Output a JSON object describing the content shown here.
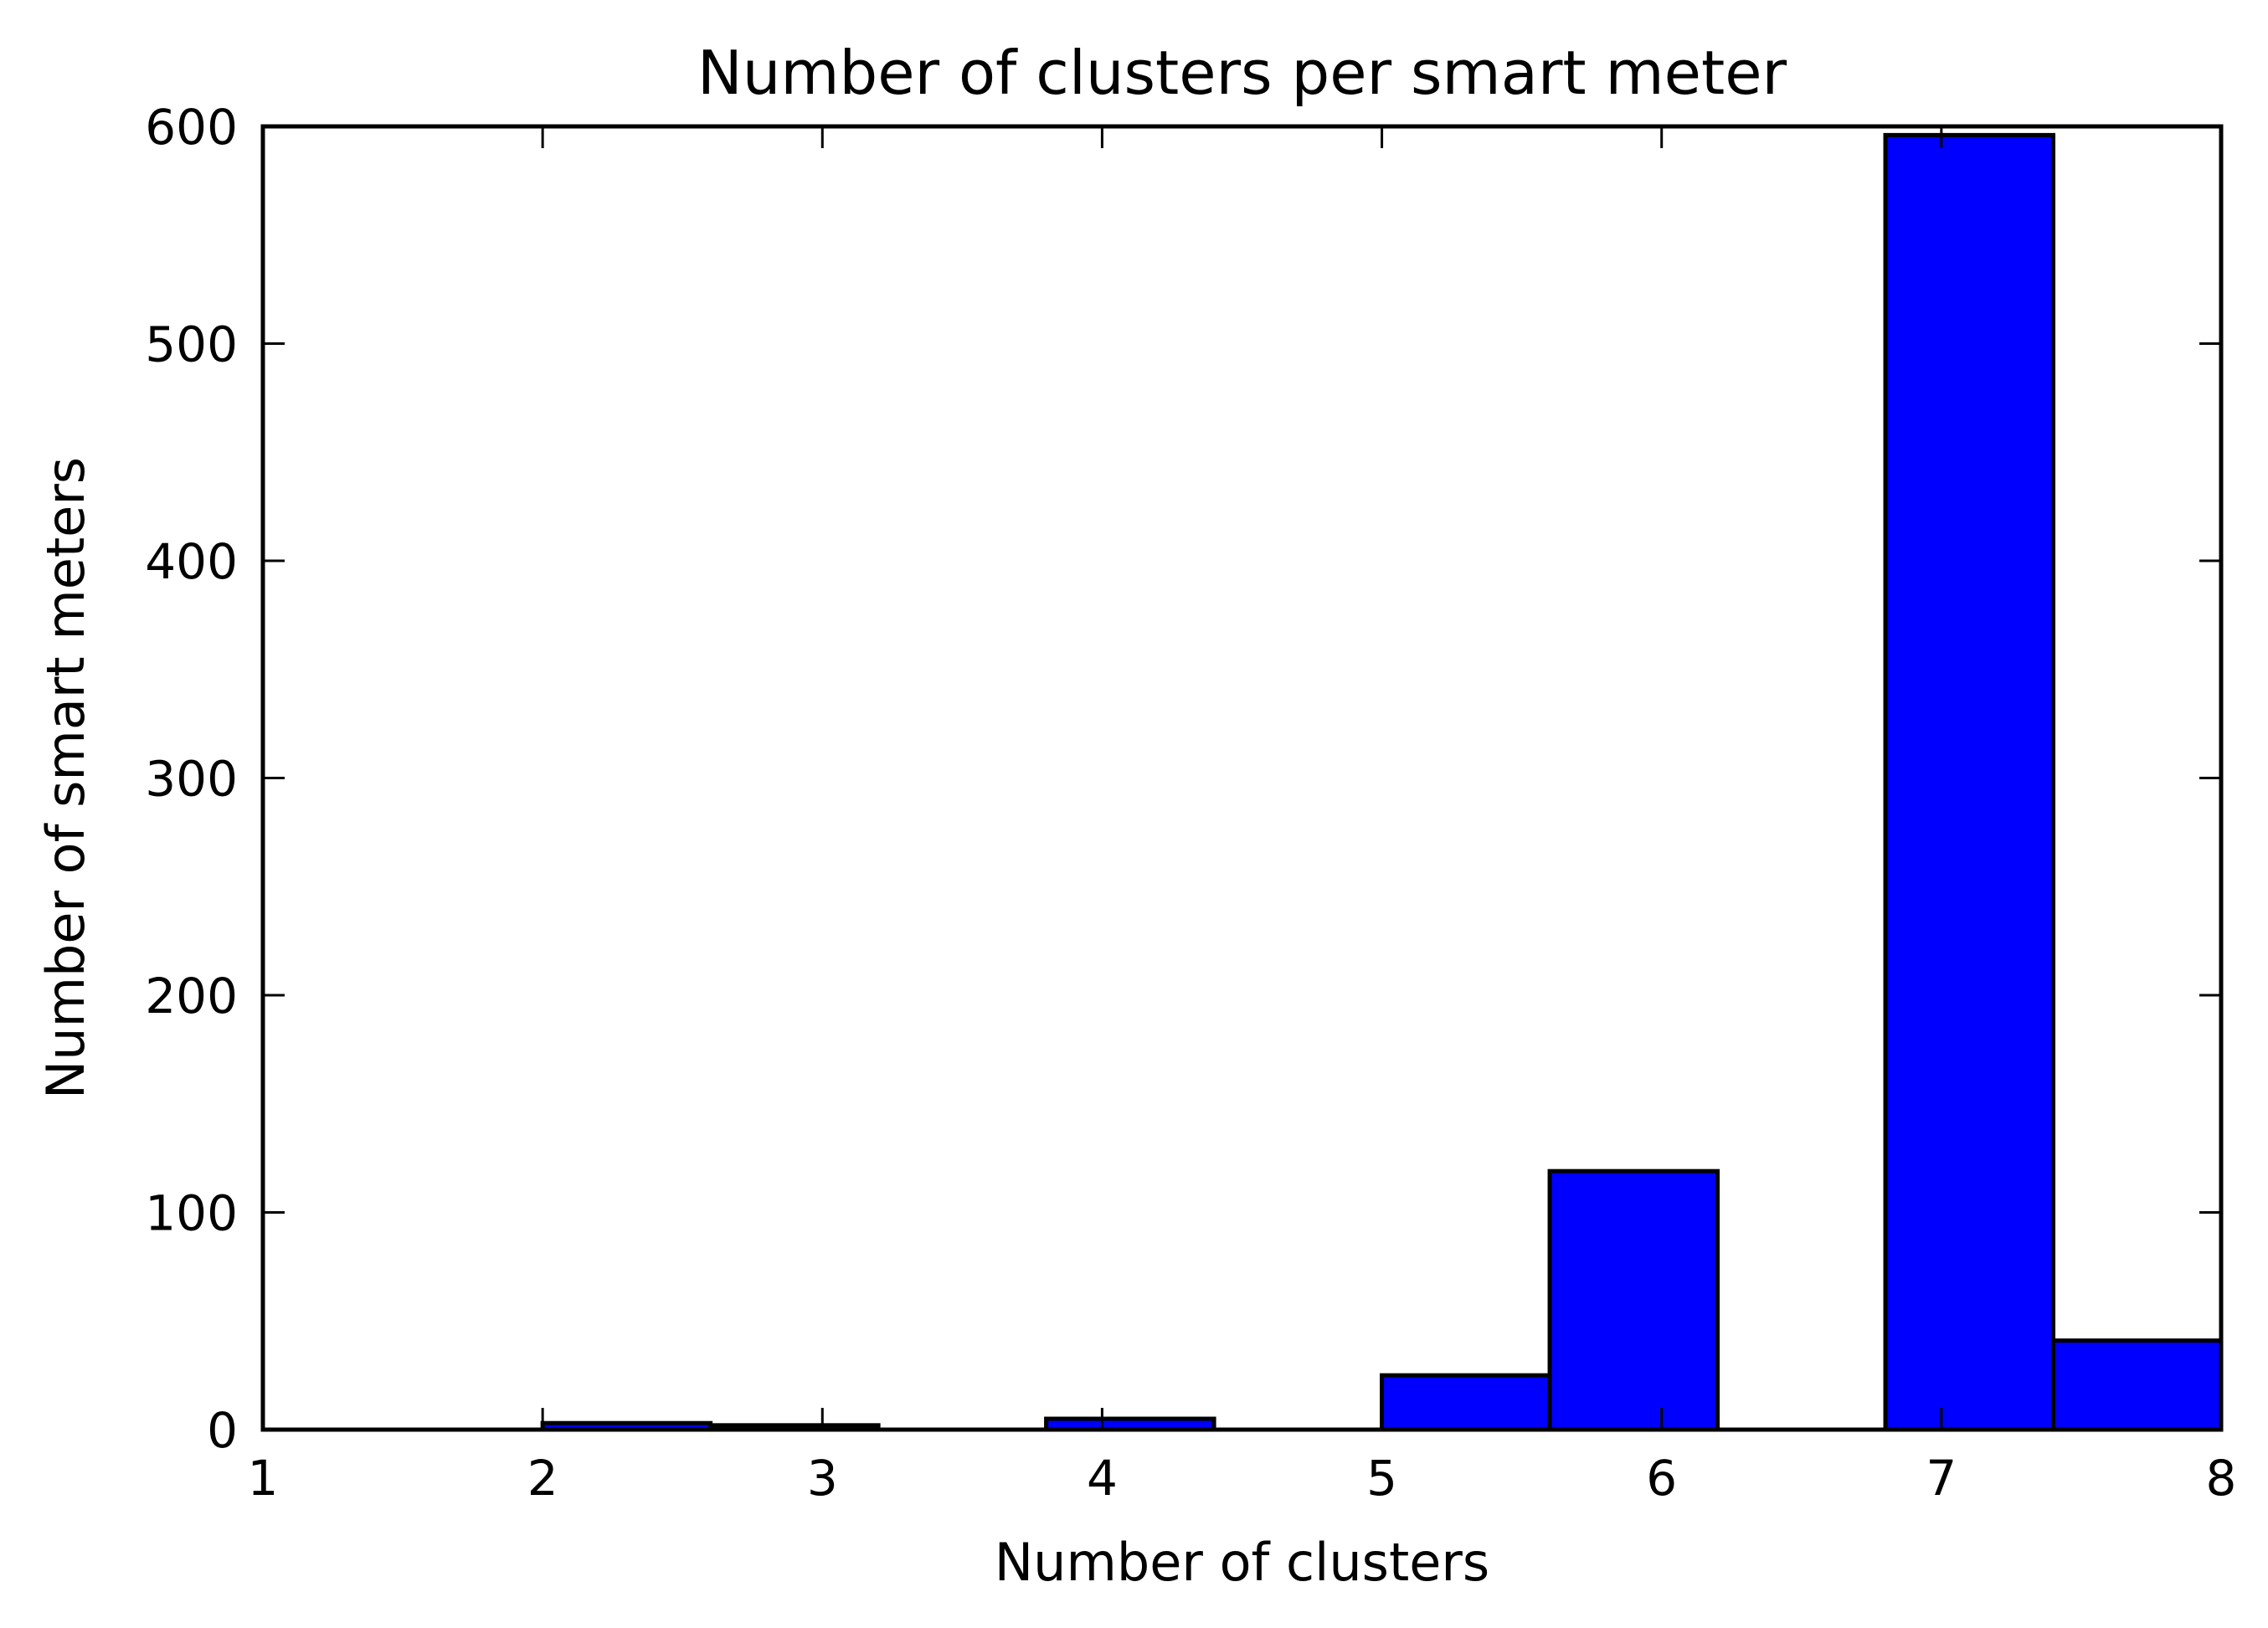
{
  "chart_data": {
    "type": "bar",
    "title": "Number of clusters per smart meter",
    "xlabel": "Number of clusters",
    "ylabel": "Number of smart meters",
    "xlim": [
      1,
      8
    ],
    "ylim": [
      0,
      600
    ],
    "xticks": [
      "1",
      "2",
      "3",
      "4",
      "5",
      "6",
      "7",
      "8"
    ],
    "yticks": [
      "0",
      "100",
      "200",
      "300",
      "400",
      "500",
      "600"
    ],
    "grid": false,
    "legend": "none",
    "bar_color": "#0000ff",
    "edge_color": "#000000",
    "bins": [
      {
        "x0": 2.0,
        "x1": 2.6,
        "value": 3
      },
      {
        "x0": 2.6,
        "x1": 3.2,
        "value": 2
      },
      {
        "x0": 3.8,
        "x1": 4.4,
        "value": 5
      },
      {
        "x0": 5.0,
        "x1": 5.6,
        "value": 25
      },
      {
        "x0": 5.6,
        "x1": 6.2,
        "value": 119
      },
      {
        "x0": 6.8,
        "x1": 7.4,
        "value": 596
      },
      {
        "x0": 7.4,
        "x1": 8.0,
        "value": 41
      }
    ]
  }
}
